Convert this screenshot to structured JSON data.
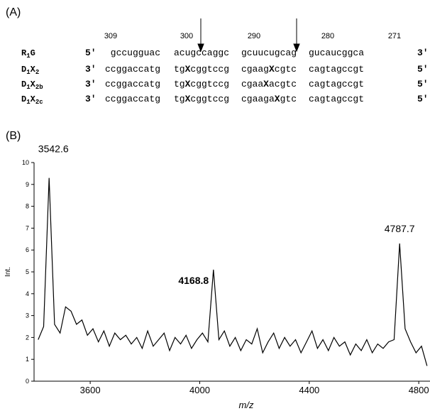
{
  "panel_a": {
    "label": "(A)",
    "positions": [
      309,
      300,
      290,
      280,
      271
    ],
    "rows": [
      {
        "name": [
          "R",
          "1",
          "G"
        ],
        "left": "5'",
        "groups": [
          [
            "gccugguac"
          ],
          [
            "acugccaggc"
          ],
          [
            "gcuucugcag"
          ],
          [
            "gucaucggca"
          ]
        ],
        "right": "3'"
      },
      {
        "name": [
          "D",
          "1",
          "X",
          "2"
        ],
        "left": "3'",
        "groups": [
          [
            "ccggaccatg"
          ],
          [
            "tg",
            "X",
            "cggtccg"
          ],
          [
            "cgaag",
            "X",
            "cgtc"
          ],
          [
            "cagtagccgt"
          ]
        ],
        "right": "5'"
      },
      {
        "name": [
          "D",
          "1",
          "X",
          "2b"
        ],
        "left": "3'",
        "groups": [
          [
            "ccggaccatg"
          ],
          [
            "tg",
            "X",
            "cggtccg"
          ],
          [
            "cgaa",
            "X",
            "acgtc"
          ],
          [
            "cagtagccgt"
          ]
        ],
        "right": "5'"
      },
      {
        "name": [
          "D",
          "1",
          "X",
          "2c"
        ],
        "left": "3'",
        "groups": [
          [
            "ccggaccatg"
          ],
          [
            "tg",
            "X",
            "cggtccg"
          ],
          [
            "cgaaga",
            "X",
            "gtc"
          ],
          [
            "cagtagccgt"
          ]
        ],
        "right": "5'"
      }
    ]
  },
  "chart_data": {
    "type": "line",
    "panel_label": "(B)",
    "xlabel": "m/z",
    "ylabel": "Int.",
    "color": "#000000",
    "xlim": [
      3395,
      4841
    ],
    "xticks": [
      3600,
      4000,
      4400,
      4800
    ],
    "ylim": [
      0,
      10
    ],
    "yticks": [
      0,
      1,
      2,
      3,
      4,
      5,
      6,
      7,
      8,
      9,
      10
    ],
    "x": [
      3410,
      3430,
      3450,
      3470,
      3490,
      3510,
      3530,
      3550,
      3570,
      3590,
      3610,
      3630,
      3650,
      3670,
      3690,
      3710,
      3730,
      3750,
      3770,
      3790,
      3810,
      3830,
      3850,
      3870,
      3890,
      3910,
      3930,
      3950,
      3970,
      3990,
      4010,
      4030,
      4050,
      4070,
      4090,
      4110,
      4130,
      4150,
      4170,
      4190,
      4210,
      4230,
      4250,
      4270,
      4290,
      4310,
      4330,
      4350,
      4370,
      4390,
      4410,
      4430,
      4450,
      4470,
      4490,
      4510,
      4530,
      4550,
      4570,
      4590,
      4610,
      4630,
      4650,
      4670,
      4690,
      4710,
      4730,
      4750,
      4770,
      4790,
      4810,
      4830
    ],
    "values": [
      1.9,
      2.5,
      9.3,
      2.6,
      2.2,
      3.4,
      3.2,
      2.6,
      2.8,
      2.1,
      2.4,
      1.8,
      2.3,
      1.6,
      2.2,
      1.9,
      2.1,
      1.7,
      2.0,
      1.5,
      2.3,
      1.6,
      1.9,
      2.2,
      1.4,
      2.0,
      1.7,
      2.1,
      1.5,
      1.9,
      2.2,
      1.8,
      5.1,
      1.9,
      2.3,
      1.6,
      2.0,
      1.4,
      1.9,
      1.7,
      2.4,
      1.3,
      1.8,
      2.2,
      1.5,
      2.0,
      1.6,
      1.9,
      1.3,
      1.8,
      2.3,
      1.5,
      1.9,
      1.4,
      2.0,
      1.6,
      1.8,
      1.2,
      1.7,
      1.4,
      1.9,
      1.3,
      1.7,
      1.5,
      1.8,
      1.9,
      6.3,
      2.4,
      1.8,
      1.3,
      1.6,
      0.7
    ],
    "annotations": [
      {
        "text": "3542.6",
        "x": 3450,
        "y": 9.3,
        "bold": false
      },
      {
        "text": "4168.8",
        "x": 4050,
        "y": 5.1,
        "bold": true
      },
      {
        "text": "4787.7",
        "x": 4730,
        "y": 6.3,
        "bold": false
      }
    ]
  }
}
